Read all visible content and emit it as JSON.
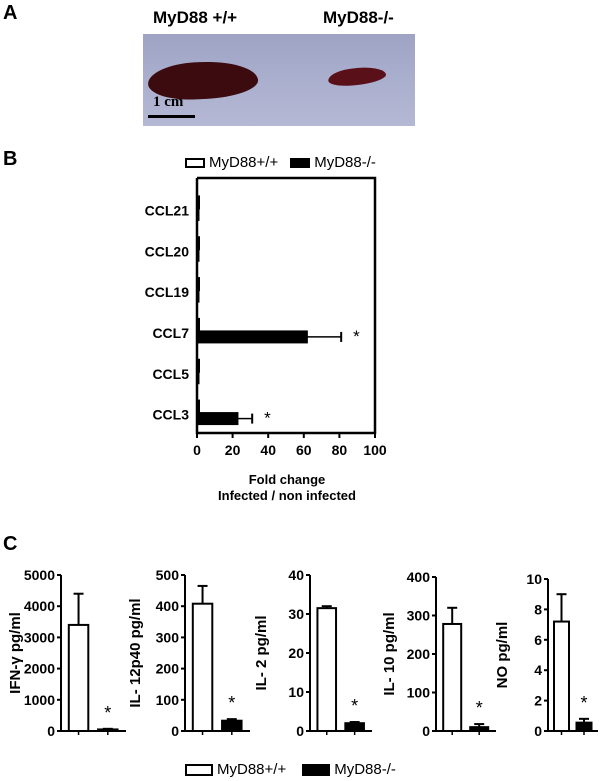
{
  "panel_a": {
    "letter": "A",
    "labels": [
      "MyD88 +/+",
      "MyD88-/-"
    ],
    "scale_bar": "1 cm"
  },
  "panel_b": {
    "letter": "B",
    "legend": [
      "MyD88+/+",
      "MyD88-/-"
    ]
  },
  "panel_c": {
    "letter": "C",
    "legend": [
      "MyD88+/+",
      "MyD88-/-"
    ]
  },
  "colors": {
    "wt": "#ffffff",
    "ko": "#000000",
    "axis": "#000000"
  },
  "chart_data": [
    {
      "type": "bar",
      "orientation": "horizontal",
      "title": "",
      "categories": [
        "CCL21",
        "CCL20",
        "CCL19",
        "CCL7",
        "CCL5",
        "CCL3"
      ],
      "series": [
        {
          "name": "MyD88+/+",
          "values": [
            1,
            1,
            1,
            1,
            1,
            1
          ],
          "errors": [
            0,
            0,
            0,
            0,
            0,
            0
          ]
        },
        {
          "name": "MyD88-/-",
          "values": [
            1,
            1,
            1,
            62,
            1,
            23
          ],
          "errors": [
            0,
            0,
            0,
            19,
            0,
            8
          ]
        }
      ],
      "significance": [
        "",
        "",
        "",
        "*",
        "",
        "*"
      ],
      "xlabel": "Fold change\nInfected / non infected",
      "xlabel_lines": [
        "Fold change",
        "Infected / non infected"
      ],
      "ylabel": "",
      "xlim": [
        0,
        100
      ],
      "xticks": [
        0,
        20,
        40,
        60,
        80,
        100
      ],
      "legend_position": "top",
      "grid": false
    },
    {
      "type": "bar",
      "categories": [
        "MyD88+/+",
        "MyD88-/-"
      ],
      "values": [
        3400,
        50
      ],
      "errors": [
        1000,
        20
      ],
      "significance": [
        "",
        "*"
      ],
      "ylabel": "IFN-γ pg/ml",
      "ylim": [
        0,
        5000
      ],
      "yticks": [
        0,
        1000,
        2000,
        3000,
        4000,
        5000
      ],
      "grid": false
    },
    {
      "type": "bar",
      "categories": [
        "MyD88+/+",
        "MyD88-/-"
      ],
      "values": [
        408,
        33
      ],
      "errors": [
        57,
        5
      ],
      "significance": [
        "",
        "*"
      ],
      "ylabel": "IL- 12p40  pg/ml",
      "ylim": [
        0,
        500
      ],
      "yticks": [
        0,
        100,
        200,
        300,
        400,
        500
      ],
      "grid": false
    },
    {
      "type": "bar",
      "categories": [
        "MyD88+/+",
        "MyD88-/-"
      ],
      "values": [
        31.5,
        2.0
      ],
      "errors": [
        0.5,
        0.3
      ],
      "significance": [
        "",
        "*"
      ],
      "ylabel": "IL- 2 pg/ml",
      "ylim": [
        0,
        40
      ],
      "yticks": [
        0,
        10,
        20,
        30,
        40
      ],
      "grid": false
    },
    {
      "type": "bar",
      "categories": [
        "MyD88+/+",
        "MyD88-/-"
      ],
      "values": [
        278,
        10
      ],
      "errors": [
        42,
        8
      ],
      "significance": [
        "",
        "*"
      ],
      "ylabel": "IL- 10 pg/ml",
      "ylim": [
        0,
        400
      ],
      "yticks": [
        0,
        100,
        200,
        300,
        400
      ],
      "grid": false
    },
    {
      "type": "bar",
      "categories": [
        "MyD88+/+",
        "MyD88-/-"
      ],
      "values": [
        7.2,
        0.55
      ],
      "errors": [
        1.8,
        0.25
      ],
      "significance": [
        "",
        "*"
      ],
      "ylabel": "NO pg/ml",
      "ylim": [
        0,
        10
      ],
      "yticks": [
        0,
        2,
        4,
        6,
        8,
        10
      ],
      "grid": false
    }
  ]
}
